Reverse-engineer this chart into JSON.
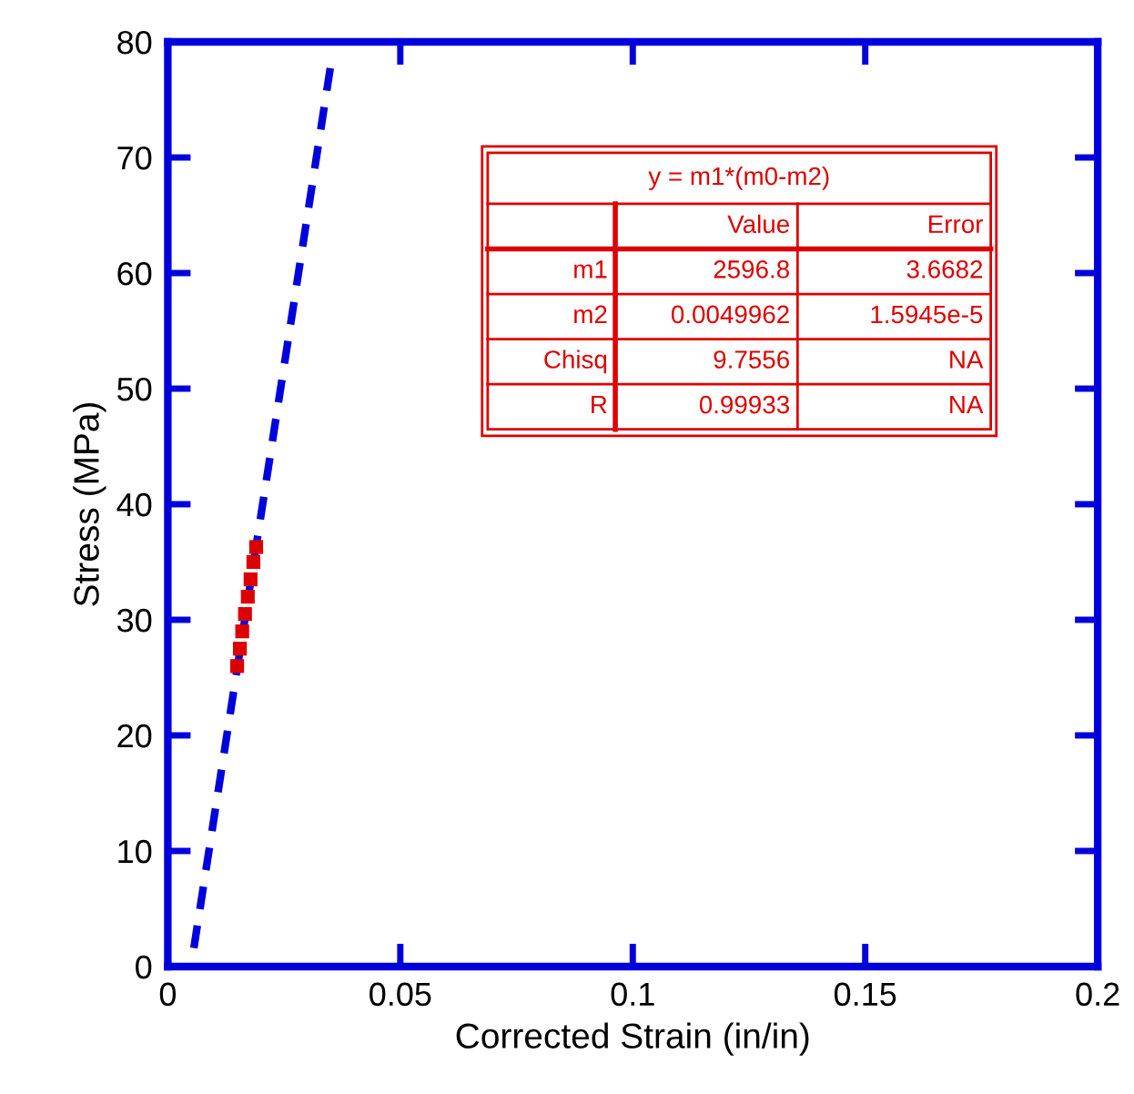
{
  "chart_data": {
    "type": "line",
    "xlabel": "Corrected Strain (in/in)",
    "ylabel": "Stress (MPa)",
    "xlim": [
      0,
      0.2
    ],
    "xticks": [
      0,
      0.05,
      0.1,
      0.15,
      0.2
    ],
    "ylim": [
      0,
      80
    ],
    "yticks": [
      0,
      10,
      20,
      30,
      40,
      50,
      60,
      70,
      80
    ],
    "grid": false,
    "series": [
      {
        "color": "#0000dd",
        "line_style": "dashed",
        "marker": "none",
        "x": [
          0.0056,
          0.035
        ],
        "values": [
          1.6,
          77.9
        ]
      },
      {
        "type": "scatter",
        "color": "#dd0000",
        "marker": "square",
        "x": [
          0.0149,
          0.0155,
          0.016,
          0.0166,
          0.0172,
          0.0178,
          0.0184,
          0.019
        ],
        "values": [
          26,
          27.5,
          29,
          30.5,
          32,
          33.5,
          35,
          36.3
        ]
      }
    ],
    "annotations": [
      "y = m1*(m0-m2)",
      "Value",
      "Error",
      "m1",
      "2596.8",
      "3.6682",
      "m2",
      "0.0049962",
      "1.5945e-5",
      "Chisq",
      "9.7556",
      "NA",
      "R",
      "0.99933",
      "NA"
    ]
  }
}
